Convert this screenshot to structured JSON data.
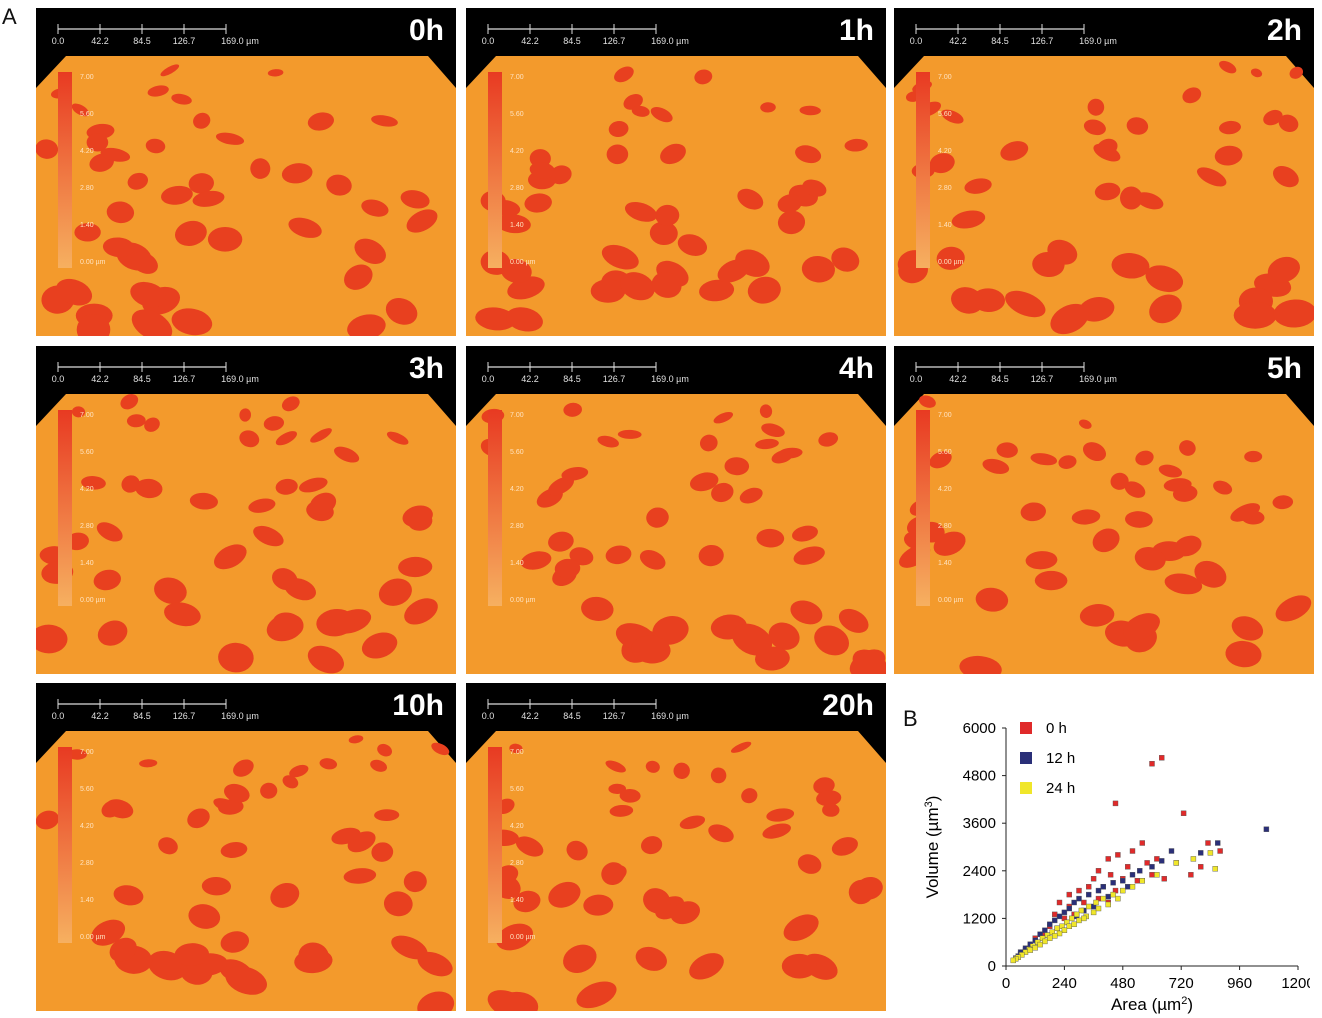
{
  "panel_labels": {
    "a": "A",
    "b": "B"
  },
  "scale_bar": {
    "ticks": [
      "0.0",
      "42.2",
      "84.5",
      "126.7",
      "169.0 µm"
    ]
  },
  "colorbar": {
    "ticks": [
      "7.00",
      "5.60",
      "4.20",
      "2.80",
      "1.40",
      "0.00 µm"
    ]
  },
  "panels": [
    {
      "time": "0h"
    },
    {
      "time": "1h"
    },
    {
      "time": "2h"
    },
    {
      "time": "3h"
    },
    {
      "time": "4h"
    },
    {
      "time": "5h"
    },
    {
      "time": "10h"
    },
    {
      "time": "20h"
    }
  ],
  "colors": {
    "substrate": "#f39a2c",
    "cell": "#e8401f",
    "background": "#000000",
    "s0": "#e02a2a",
    "s12": "#2a2f78",
    "s24": "#f0e62a"
  },
  "chart_data": {
    "type": "scatter",
    "xlabel": "Area (µm",
    "xlabel_sup": "2",
    "xlabel_end": ")",
    "ylabel": "Volume (µm",
    "ylabel_sup": "3",
    "ylabel_end": ")",
    "xlim": [
      0,
      1200
    ],
    "ylim": [
      0,
      6000
    ],
    "x_ticks": [
      "0",
      "240",
      "480",
      "720",
      "960",
      "1200"
    ],
    "y_ticks": [
      "0",
      "1200",
      "2400",
      "3600",
      "4800",
      "6000"
    ],
    "legend_position": "top-left",
    "series": [
      {
        "name": "0 h",
        "color": "#e02a2a",
        "points": [
          [
            600,
            5100
          ],
          [
            640,
            5250
          ],
          [
            450,
            4100
          ],
          [
            730,
            3850
          ],
          [
            830,
            3100
          ],
          [
            880,
            2900
          ],
          [
            560,
            3100
          ],
          [
            460,
            2800
          ],
          [
            520,
            2900
          ],
          [
            420,
            2700
          ],
          [
            580,
            2600
          ],
          [
            500,
            2500
          ],
          [
            620,
            2700
          ],
          [
            700,
            2600
          ],
          [
            760,
            2300
          ],
          [
            800,
            2500
          ],
          [
            380,
            2400
          ],
          [
            360,
            2200
          ],
          [
            430,
            2300
          ],
          [
            480,
            2200
          ],
          [
            540,
            2150
          ],
          [
            600,
            2300
          ],
          [
            650,
            2200
          ],
          [
            340,
            2000
          ],
          [
            300,
            1900
          ],
          [
            260,
            1800
          ],
          [
            400,
            2000
          ],
          [
            450,
            1900
          ],
          [
            220,
            1600
          ],
          [
            260,
            1500
          ],
          [
            320,
            1600
          ],
          [
            380,
            1700
          ],
          [
            420,
            1600
          ],
          [
            200,
            1300
          ],
          [
            240,
            1200
          ],
          [
            280,
            1300
          ],
          [
            180,
            1000
          ],
          [
            150,
            800
          ],
          [
            120,
            700
          ],
          [
            100,
            500
          ],
          [
            80,
            400
          ],
          [
            60,
            300
          ]
        ]
      },
      {
        "name": "12 h",
        "color": "#2a2f78",
        "points": [
          [
            1070,
            3450
          ],
          [
            870,
            3100
          ],
          [
            800,
            2850
          ],
          [
            680,
            2900
          ],
          [
            640,
            2650
          ],
          [
            600,
            2500
          ],
          [
            550,
            2400
          ],
          [
            520,
            2300
          ],
          [
            480,
            2150
          ],
          [
            440,
            2100
          ],
          [
            400,
            2000
          ],
          [
            380,
            1900
          ],
          [
            340,
            1800
          ],
          [
            300,
            1700
          ],
          [
            280,
            1600
          ],
          [
            260,
            1450
          ],
          [
            240,
            1350
          ],
          [
            220,
            1250
          ],
          [
            200,
            1150
          ],
          [
            180,
            1050
          ],
          [
            160,
            900
          ],
          [
            140,
            800
          ],
          [
            120,
            650
          ],
          [
            100,
            550
          ],
          [
            80,
            450
          ],
          [
            60,
            350
          ],
          [
            50,
            250
          ],
          [
            40,
            200
          ],
          [
            500,
            2000
          ],
          [
            560,
            2150
          ],
          [
            420,
            1750
          ],
          [
            360,
            1500
          ],
          [
            320,
            1400
          ],
          [
            290,
            1250
          ],
          [
            250,
            1100
          ],
          [
            210,
            950
          ],
          [
            170,
            780
          ],
          [
            130,
            600
          ]
        ]
      },
      {
        "name": "24 h",
        "color": "#f0e62a",
        "points": [
          [
            840,
            2850
          ],
          [
            860,
            2450
          ],
          [
            770,
            2700
          ],
          [
            700,
            2600
          ],
          [
            620,
            2300
          ],
          [
            560,
            2150
          ],
          [
            520,
            2000
          ],
          [
            480,
            1900
          ],
          [
            440,
            1800
          ],
          [
            400,
            1700
          ],
          [
            370,
            1600
          ],
          [
            340,
            1500
          ],
          [
            310,
            1400
          ],
          [
            290,
            1300
          ],
          [
            270,
            1200
          ],
          [
            250,
            1100
          ],
          [
            230,
            1000
          ],
          [
            210,
            950
          ],
          [
            190,
            850
          ],
          [
            170,
            780
          ],
          [
            150,
            700
          ],
          [
            130,
            600
          ],
          [
            110,
            500
          ],
          [
            95,
            420
          ],
          [
            80,
            350
          ],
          [
            65,
            280
          ],
          [
            50,
            220
          ],
          [
            40,
            180
          ],
          [
            30,
            140
          ],
          [
            300,
            1150
          ],
          [
            330,
            1250
          ],
          [
            360,
            1350
          ],
          [
            260,
            1000
          ],
          [
            240,
            900
          ],
          [
            220,
            820
          ],
          [
            200,
            760
          ],
          [
            180,
            700
          ],
          [
            160,
            620
          ],
          [
            140,
            540
          ],
          [
            120,
            460
          ],
          [
            100,
            400
          ],
          [
            280,
            1050
          ],
          [
            320,
            1200
          ],
          [
            380,
            1450
          ],
          [
            420,
            1550
          ],
          [
            460,
            1700
          ]
        ]
      }
    ]
  }
}
